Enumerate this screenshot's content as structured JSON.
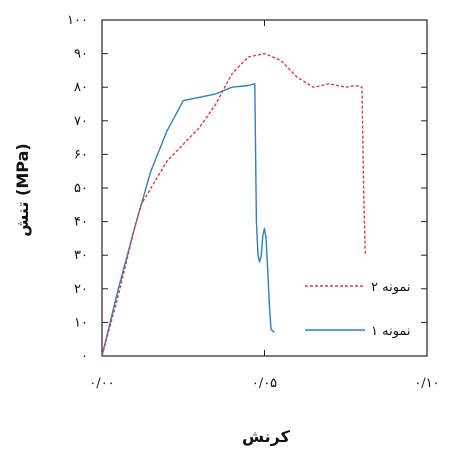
{
  "chart_data": {
    "type": "line",
    "xlabel": "کرنش",
    "ylabel": "تنش (MPa)",
    "xlim": [
      0,
      0.1
    ],
    "ylim": [
      0,
      100
    ],
    "x_ticks": [
      0,
      0.05,
      0.1
    ],
    "x_tick_labels": [
      "۰/۰۰",
      "۰/۰۵",
      "۰/۱۰"
    ],
    "y_ticks": [
      0,
      10,
      20,
      30,
      40,
      50,
      60,
      70,
      80,
      90,
      100
    ],
    "y_tick_labels": [
      "۰",
      "۱۰",
      "۲۰",
      "۳۰",
      "۴۰",
      "۵۰",
      "۶۰",
      "۷۰",
      "۸۰",
      "۹۰",
      "۱۰۰"
    ],
    "grid": false,
    "legend_position": "bottom-right",
    "series": [
      {
        "name": "نمونه ۱",
        "color": "#2f7fc1",
        "style": "solid",
        "x": [
          0.0,
          0.005,
          0.01,
          0.015,
          0.02,
          0.025,
          0.03,
          0.035,
          0.04,
          0.045,
          0.047,
          0.0475,
          0.048,
          0.0485,
          0.049,
          0.0495,
          0.05,
          0.0505,
          0.051,
          0.0515,
          0.052,
          0.053
        ],
        "y": [
          0,
          20,
          38,
          55,
          67,
          76,
          77,
          78,
          80,
          80.5,
          81,
          40,
          30,
          28,
          30,
          36,
          38,
          35,
          25,
          15,
          8,
          7
        ]
      },
      {
        "name": "نمونه ۲",
        "color": "#e03a3a",
        "style": "dashed",
        "x": [
          0.0,
          0.005,
          0.01,
          0.012,
          0.02,
          0.03,
          0.035,
          0.04,
          0.045,
          0.05,
          0.055,
          0.06,
          0.065,
          0.07,
          0.075,
          0.078,
          0.08,
          0.0805,
          0.081
        ],
        "y": [
          0,
          18,
          38,
          45,
          58,
          68,
          75,
          84,
          89,
          90,
          88,
          83,
          80,
          81,
          80,
          80.5,
          80,
          50,
          30
        ]
      }
    ]
  }
}
